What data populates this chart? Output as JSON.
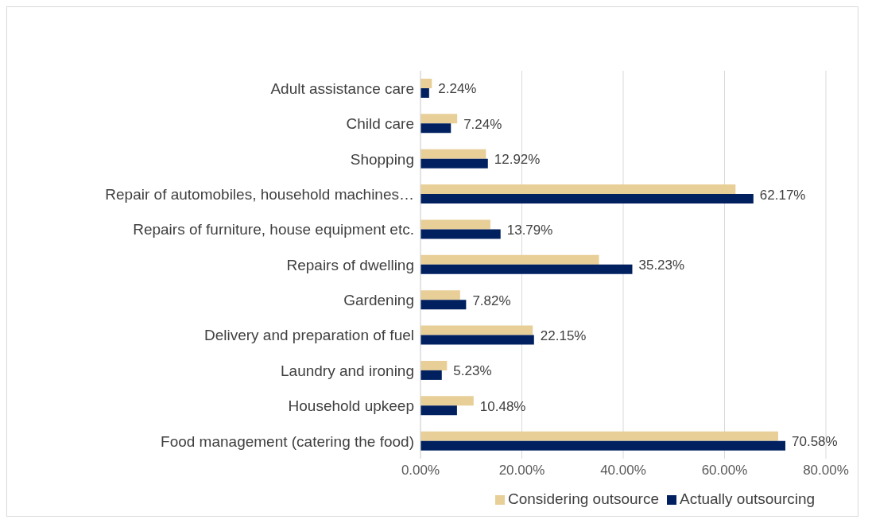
{
  "chart_data": {
    "type": "bar",
    "orientation": "horizontal",
    "categories": [
      "Adult assistance care",
      "Child care",
      "Shopping",
      "Repair of automobiles, household machines…",
      "Repairs of furniture, house equipment etc.",
      "Repairs of dwelling",
      "Gardening",
      "Delivery and preparation of fuel",
      "Laundry and ironing",
      "Household upkeep",
      "Food management (catering the food)"
    ],
    "series": [
      {
        "name": "Considering outsource",
        "color": "#e8cf98",
        "values": [
          2.24,
          7.24,
          12.92,
          62.17,
          13.79,
          35.23,
          7.82,
          22.15,
          5.23,
          10.48,
          70.58
        ],
        "value_labels": [
          "2.24%",
          "7.24%",
          "12.92%",
          "62.17%",
          "13.79%",
          "35.23%",
          "7.82%",
          "22.15%",
          "5.23%",
          "10.48%",
          "70.58%"
        ]
      },
      {
        "name": "Actually outsourcing",
        "color": "#002060",
        "values": [
          1.7,
          6.0,
          13.3,
          65.7,
          15.8,
          41.8,
          9.0,
          22.4,
          4.2,
          7.2,
          72.0
        ]
      }
    ],
    "xlim": [
      0,
      80
    ],
    "xticks": [
      {
        "value": 0,
        "label": "0.00%"
      },
      {
        "value": 20,
        "label": "20.00%"
      },
      {
        "value": 40,
        "label": "40.00%"
      },
      {
        "value": 60,
        "label": "60.00%"
      },
      {
        "value": 80,
        "label": "80.00%"
      }
    ],
    "grid": "x",
    "legend": "bottom"
  }
}
